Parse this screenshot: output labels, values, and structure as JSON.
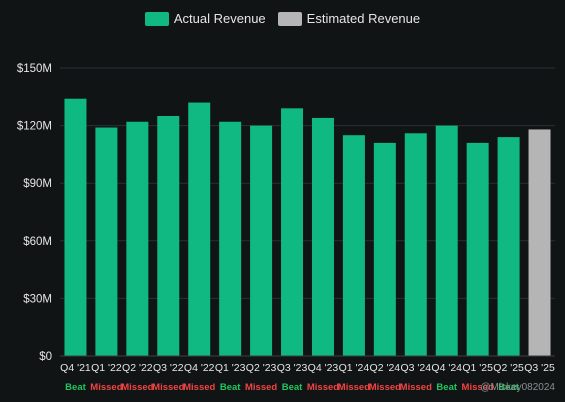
{
  "legend": {
    "actual_label": "Actual Revenue",
    "estimated_label": "Estimated Revenue"
  },
  "watermark": "@Mickey082024",
  "colors": {
    "actual": "#10b981",
    "estimated": "#b5b5b5",
    "beat": "#22c55e",
    "missed": "#ef4444",
    "grid": "#2a2f33",
    "background": "#111414"
  },
  "chart_data": {
    "type": "bar",
    "categories": [
      "Q4 '21",
      "Q1 '22",
      "Q2 '22",
      "Q3 '22",
      "Q4 '22",
      "Q1 '23",
      "Q2 '23",
      "Q3 '23",
      "Q4 '23",
      "Q1 '24",
      "Q2 '24",
      "Q3 '24",
      "Q4 '24",
      "Q1 '25",
      "Q2 '25",
      "Q3 '25"
    ],
    "series": [
      {
        "name": "Actual Revenue",
        "values": [
          134,
          119,
          122,
          125,
          132,
          122,
          120,
          129,
          124,
          115,
          111,
          116,
          120,
          111,
          114,
          null
        ]
      },
      {
        "name": "Estimated Revenue",
        "values": [
          null,
          null,
          null,
          null,
          null,
          null,
          null,
          null,
          null,
          null,
          null,
          null,
          null,
          null,
          null,
          118
        ]
      }
    ],
    "results": [
      "Beat",
      "Missed",
      "Missed",
      "Missed",
      "Missed",
      "Beat",
      "Missed",
      "Beat",
      "Missed",
      "Missed",
      "Missed",
      "Missed",
      "Beat",
      "Missed",
      "Beat",
      ""
    ],
    "y_ticks": [
      "$0",
      "$30M",
      "$60M",
      "$90M",
      "$120M",
      "$150M"
    ],
    "y_tick_values": [
      0,
      30,
      60,
      90,
      120,
      150
    ],
    "ylim": [
      0,
      150
    ],
    "unit": "$M",
    "grid": true,
    "legend_position": "top-center"
  }
}
